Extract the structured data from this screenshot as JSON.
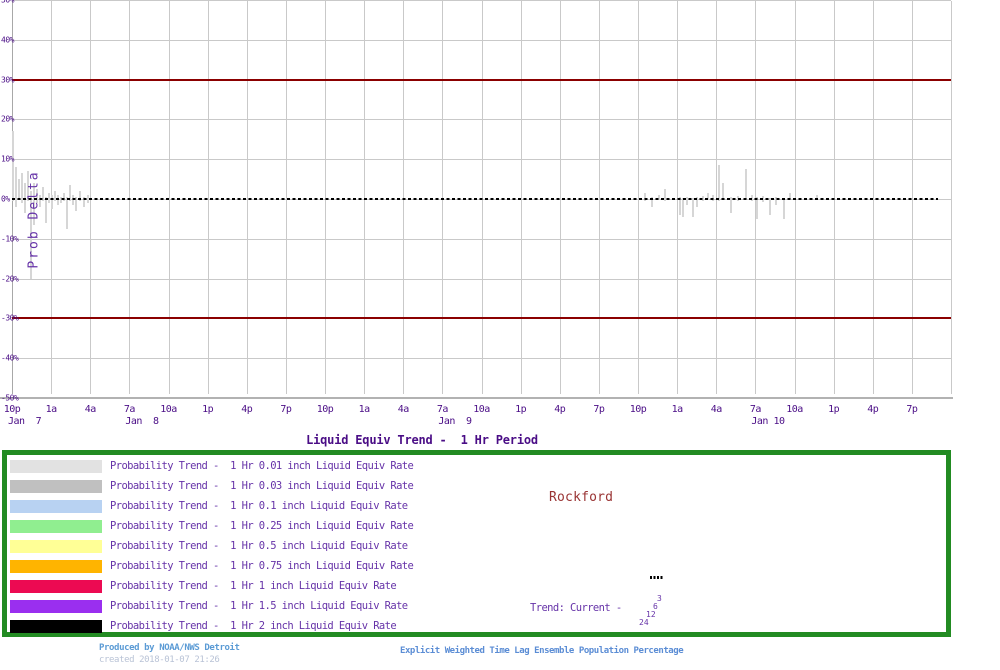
{
  "chart_data": {
    "type": "bar",
    "title": "Liquid Equiv Trend -  1 Hr Period",
    "ylabel": "Prob Delta",
    "ylim": [
      -50,
      50
    ],
    "grid": true,
    "y_tick_labels": [
      "50%",
      "40%",
      "30%",
      "20%",
      "10%",
      "0%",
      "-10%",
      "-20%",
      "-30%",
      "-40%",
      "-50%"
    ],
    "x_tick_labels": [
      "10p",
      "1a",
      "4a",
      "7a",
      "10a",
      "1p",
      "4p",
      "7p",
      "10p",
      "1a",
      "4a",
      "7a",
      "10a",
      "1p",
      "4p",
      "7p",
      "10p",
      "1a",
      "4a",
      "7a",
      "10a",
      "1p",
      "4p",
      "7p"
    ],
    "x_date_labels": [
      {
        "tick": 0,
        "label": "Jan  7"
      },
      {
        "tick": 3,
        "label": "Jan  8"
      },
      {
        "tick": 11,
        "label": "Jan  9"
      },
      {
        "tick": 19,
        "label": "Jan 10"
      }
    ],
    "threshold_lines_pct": [
      30,
      -30
    ],
    "zero_line_pct": 0,
    "bars_x_hi_lo": [
      [
        13,
        17,
        -0.5
      ],
      [
        16,
        8,
        -2
      ],
      [
        19,
        5,
        0
      ],
      [
        22,
        6.5,
        -1
      ],
      [
        25,
        4,
        -3.5
      ],
      [
        28,
        7,
        -0.5
      ],
      [
        31,
        2,
        -20
      ],
      [
        34,
        4,
        -6.5
      ],
      [
        37,
        2.5,
        -1
      ],
      [
        40,
        1,
        -2
      ],
      [
        43,
        3,
        -0.5
      ],
      [
        46,
        0.5,
        -6
      ],
      [
        49,
        1.5,
        -1
      ],
      [
        52,
        1,
        -2.5
      ],
      [
        55,
        2,
        -0.5
      ],
      [
        58,
        1,
        -1.5
      ],
      [
        61,
        0.5,
        -1
      ],
      [
        64,
        1.5,
        -0.5
      ],
      [
        67,
        0.5,
        -7.5
      ],
      [
        70,
        3.5,
        -0.5
      ],
      [
        73,
        1,
        -1.5
      ],
      [
        76,
        0.5,
        -3
      ],
      [
        80,
        2,
        -0.5
      ],
      [
        84,
        0.5,
        -2
      ],
      [
        88,
        1,
        -1
      ],
      [
        645,
        1.5,
        -0.5
      ],
      [
        652,
        0.5,
        -2
      ],
      [
        659,
        1,
        -0.3
      ],
      [
        665,
        2.5,
        -0.5
      ],
      [
        680,
        0.5,
        -4
      ],
      [
        683,
        0.3,
        -4.5
      ],
      [
        687,
        0.5,
        -1.5
      ],
      [
        693,
        0.3,
        -4.5
      ],
      [
        697,
        0.5,
        -2
      ],
      [
        703,
        0.8,
        -0.5
      ],
      [
        708,
        1.5,
        -0.3
      ],
      [
        713,
        1,
        -0.5
      ],
      [
        719,
        8.5,
        -0.5
      ],
      [
        723,
        4,
        -0.3
      ],
      [
        731,
        0.5,
        -3.5
      ],
      [
        738,
        0.8,
        -0.5
      ],
      [
        746,
        7.5,
        -0.3
      ],
      [
        752,
        1,
        -0.5
      ],
      [
        757,
        0.5,
        -5
      ],
      [
        763,
        0.8,
        -0.8
      ],
      [
        770,
        0.3,
        -4
      ],
      [
        776,
        0.5,
        -1.5
      ],
      [
        784,
        0.3,
        -5
      ],
      [
        790,
        1.5,
        -0.3
      ],
      [
        817,
        1,
        -0.3
      ]
    ]
  },
  "legend": {
    "items": [
      {
        "color": "#e2e2e2",
        "label": "Probability Trend -  1 Hr 0.01 inch Liquid Equiv Rate"
      },
      {
        "color": "#c0c0c0",
        "label": "Probability Trend -  1 Hr 0.03 inch Liquid Equiv Rate"
      },
      {
        "color": "#b8d2f2",
        "label": "Probability Trend -  1 Hr 0.1 inch Liquid Equiv Rate"
      },
      {
        "color": "#90ee90",
        "label": "Probability Trend -  1 Hr 0.25 inch Liquid Equiv Rate"
      },
      {
        "color": "#ffff96",
        "label": "Probability Trend -  1 Hr 0.5 inch Liquid Equiv Rate"
      },
      {
        "color": "#ffb400",
        "label": "Probability Trend -  1 Hr 0.75 inch Liquid Equiv Rate"
      },
      {
        "color": "#ec0a52",
        "label": "Probability Trend -  1 Hr 1 inch Liquid Equiv Rate"
      },
      {
        "color": "#9a2fef",
        "label": "Probability Trend -  1 Hr 1.5 inch Liquid Equiv Rate"
      },
      {
        "color": "#000000",
        "label": "Probability Trend -  1 Hr 2 inch Liquid Equiv Rate"
      }
    ],
    "station": "Rockford",
    "trend_label": "Trend: Current -",
    "trend_hours": [
      "3",
      "6",
      "12",
      "24"
    ]
  },
  "footer": {
    "produced_by": "Produced by NOAA/NWS Detroit",
    "created": "created 2018-01-07 21:26",
    "description": "Explicit Weighted Time Lag Ensemble Population Percentage"
  },
  "colors": {
    "grid": "#c9c9c9",
    "axis": "#b2b2b2",
    "bar": "#d6d6d6",
    "threshold_line": "#8b0000",
    "zero_line": "#000000",
    "axis_text": "#4a0d86",
    "legend_text": "#6633a8",
    "station_text": "#993333",
    "legend_border": "#228b22",
    "produced_text": "#5b9bd5",
    "created_text": "#b9c3d6",
    "description_text": "#5b8dd5"
  }
}
